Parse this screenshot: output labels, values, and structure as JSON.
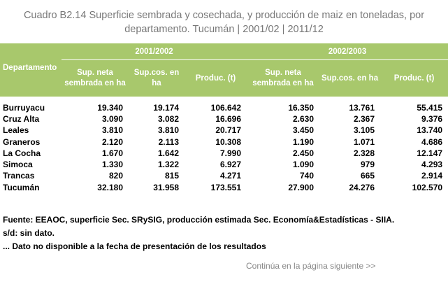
{
  "title": {
    "line1": "Cuadro B2.14 Superficie sembrada y cosechada, y producción de maiz en toneladas, por",
    "line2": "departamento. Tucumán | 2001/02 | 2011/12"
  },
  "table": {
    "dept_header": "Departamento",
    "periods": [
      "2001/2002",
      "2002/2003"
    ],
    "col_headers": [
      "Sup. neta sembrada en ha",
      "Sup.cos. en ha",
      "Produc. (t)"
    ],
    "rows": [
      {
        "name": "Burruyacu",
        "values": [
          "19.340",
          "19.174",
          "106.642",
          "16.350",
          "13.761",
          "55.415"
        ]
      },
      {
        "name": "Cruz Alta",
        "values": [
          "3.090",
          "3.082",
          "16.696",
          "2.630",
          "2.367",
          "9.376"
        ]
      },
      {
        "name": "Leales",
        "values": [
          "3.810",
          "3.810",
          "20.717",
          "3.450",
          "3.105",
          "13.740"
        ]
      },
      {
        "name": "Graneros",
        "values": [
          "2.120",
          "2.113",
          "10.308",
          "1.190",
          "1.071",
          "4.686"
        ]
      },
      {
        "name": "La Cocha",
        "values": [
          "1.670",
          "1.642",
          "7.990",
          "2.450",
          "2.328",
          "12.147"
        ]
      },
      {
        "name": "Simoca",
        "values": [
          "1.330",
          "1.322",
          "6.927",
          "1.090",
          "979",
          "4.293"
        ]
      },
      {
        "name": "Trancas",
        "values": [
          "820",
          "815",
          "4.271",
          "740",
          "665",
          "2.914"
        ]
      },
      {
        "name": "Tucumán",
        "values": [
          "32.180",
          "31.958",
          "173.551",
          "27.900",
          "24.276",
          "102.570"
        ]
      }
    ]
  },
  "notes": {
    "source": "Fuente: EEAOC, superficie Sec. SRySIG, producción estimada  Sec. Economía&Estadísticas - SIIA.",
    "sd": "s/d: sin dato.",
    "na": "... Dato no disponible a la fecha de presentación de los resultados"
  },
  "continue_link": "Continúa en la página siguiente >>",
  "colors": {
    "header_bg": "#a8c86c",
    "header_text": "#ffffff",
    "title_text": "#777777"
  }
}
